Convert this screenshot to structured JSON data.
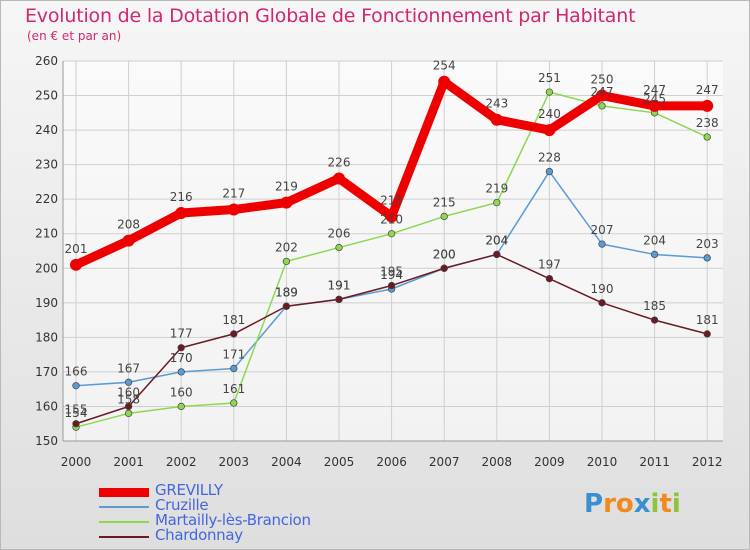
{
  "chart_data": {
    "type": "line",
    "title": "Evolution de la Dotation Globale de Fonctionnement par Habitant",
    "subtitle": "(en € et par an)",
    "x": [
      "2000",
      "2001",
      "2002",
      "2003",
      "2004",
      "2005",
      "2006",
      "2007",
      "2008",
      "2009",
      "2010",
      "2011",
      "2012"
    ],
    "ylim": [
      150,
      260
    ],
    "yticks": [
      150,
      160,
      170,
      180,
      190,
      200,
      210,
      220,
      230,
      240,
      250,
      260
    ],
    "grid": true,
    "legend_position": "bottom-left",
    "series": [
      {
        "name": "GREVILLY",
        "color": "#ee0000",
        "values": [
          201,
          208,
          216,
          217,
          219,
          226,
          215,
          254,
          243,
          240,
          250,
          247,
          247
        ]
      },
      {
        "name": "Cruzille",
        "color": "#5a9bd6",
        "values": [
          166,
          167,
          170,
          171,
          189,
          191,
          194,
          200,
          204,
          228,
          207,
          204,
          203
        ]
      },
      {
        "name": "Martailly-lès-Brancion",
        "color": "#8ed850",
        "values": [
          154,
          158,
          160,
          161,
          202,
          206,
          210,
          215,
          219,
          251,
          247,
          245,
          238
        ]
      },
      {
        "name": "Chardonnay",
        "color": "#6b1a22",
        "values": [
          155,
          160,
          177,
          181,
          189,
          191,
          195,
          200,
          204,
          197,
          190,
          185,
          181
        ]
      }
    ]
  },
  "logo": {
    "text": "Proxiti",
    "letters": [
      {
        "ch": "P",
        "color": "#3a8fd0"
      },
      {
        "ch": "r",
        "color": "#f08a1c"
      },
      {
        "ch": "o",
        "color": "#f08a1c"
      },
      {
        "ch": "x",
        "color": "#3a8fd0"
      },
      {
        "ch": "i",
        "color": "#8cc43c"
      },
      {
        "ch": "t",
        "color": "#f08a1c"
      },
      {
        "ch": "i",
        "color": "#8cc43c"
      }
    ]
  }
}
